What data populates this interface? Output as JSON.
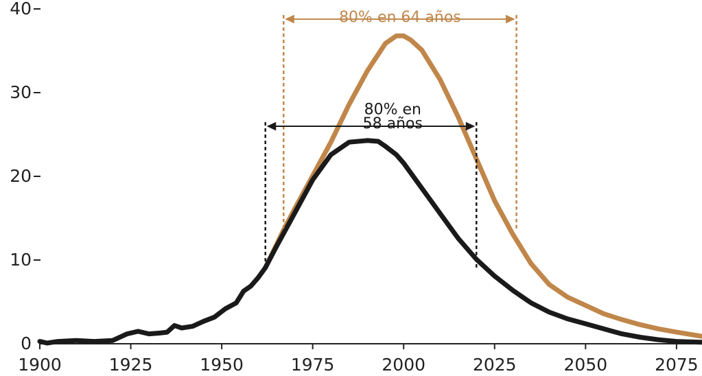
{
  "chart_data": {
    "type": "line",
    "title": "",
    "xlabel": "",
    "ylabel": "",
    "xlim": [
      1900,
      2082
    ],
    "ylim": [
      0,
      40
    ],
    "x_ticks": [
      1900,
      1925,
      1950,
      1975,
      2000,
      2025,
      2050,
      2075
    ],
    "x_tick_labels": [
      "1900",
      "1925",
      "1950",
      "1975",
      "2000",
      "2025",
      "2050",
      "2075"
    ],
    "y_ticks": [
      0,
      10,
      20,
      30,
      40
    ],
    "y_tick_labels": [
      "0",
      "10",
      "20",
      "30",
      "40"
    ],
    "grid": false,
    "legend": "none",
    "series": [
      {
        "color": "#c0864a",
        "x": [
          1962,
          1967,
          1970,
          1975,
          1980,
          1985,
          1990,
          1995,
          1998,
          2000,
          2002,
          2005,
          2010,
          2015,
          2020,
          2025,
          2030,
          2035,
          2040,
          2045,
          2050,
          2055,
          2060,
          2065,
          2070,
          2075,
          2082
        ],
        "y": [
          9,
          13.5,
          16,
          20,
          24,
          28.5,
          32.5,
          35.8,
          36.7,
          36.7,
          36.2,
          35,
          31.5,
          27,
          22,
          17,
          13,
          9.5,
          7,
          5.5,
          4.5,
          3.5,
          2.8,
          2.2,
          1.7,
          1.3,
          0.8
        ]
      },
      {
        "color": "#1a1a1a",
        "x": [
          1900,
          1902,
          1905,
          1910,
          1915,
          1920,
          1924,
          1927,
          1930,
          1933,
          1935,
          1937,
          1939,
          1942,
          1945,
          1948,
          1951,
          1954,
          1956,
          1958,
          1960,
          1962,
          1965,
          1970,
          1975,
          1980,
          1985,
          1990,
          1993,
          1995,
          1998,
          2000,
          2005,
          2010,
          2015,
          2020,
          2025,
          2030,
          2035,
          2040,
          2045,
          2050,
          2055,
          2060,
          2065,
          2070,
          2075,
          2082
        ],
        "y": [
          0.2,
          0,
          0.2,
          0.3,
          0.2,
          0.3,
          1.1,
          1.4,
          1.1,
          1.2,
          1.3,
          2.1,
          1.8,
          2.0,
          2.6,
          3.1,
          4.1,
          4.8,
          6.2,
          6.8,
          7.8,
          9,
          11.5,
          15.5,
          19.5,
          22.5,
          24,
          24.2,
          24.1,
          23.5,
          22.5,
          21.5,
          18.5,
          15.5,
          12.5,
          10,
          8,
          6.3,
          4.8,
          3.7,
          2.9,
          2.3,
          1.7,
          1.1,
          0.7,
          0.4,
          0.2,
          0.1
        ]
      }
    ],
    "annotations": [
      {
        "text": "80% en 64 años",
        "color": "#c0864a",
        "x_start": 1967,
        "x_end": 2031,
        "y_arrow": 38.7,
        "y_bottom": 13.5,
        "text_x": 1999,
        "text_y": 39.0
      },
      {
        "text_lines": [
          "80% en",
          "58 años"
        ],
        "color": "#1a1a1a",
        "x_start": 1962,
        "x_end": 2020,
        "y_arrow": 25.9,
        "y_bottom": 9,
        "text_x": 1997,
        "text_y": [
          28.0,
          26.3
        ]
      }
    ]
  }
}
